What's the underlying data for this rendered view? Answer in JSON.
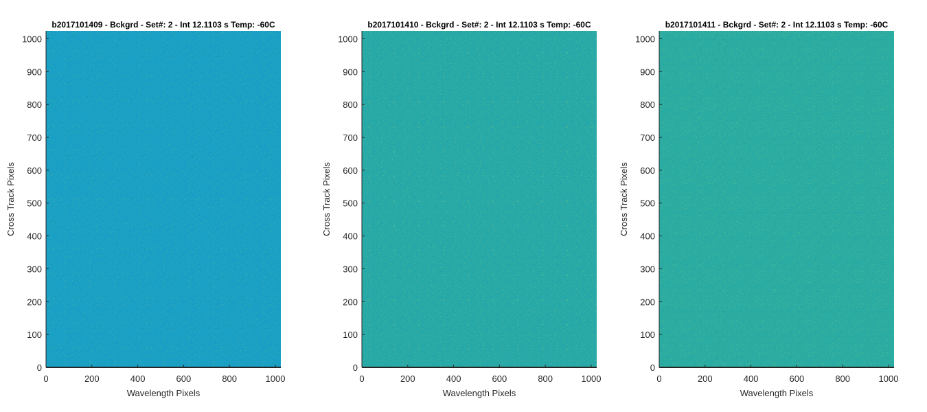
{
  "chart_data": [
    {
      "type": "heatmap",
      "title": "b2017101409 - Bckgrd - Set#: 2 - Int 12.1103 s Temp: -60C",
      "xlabel": "Wavelength Pixels",
      "ylabel": "Cross Track Pixels",
      "xlim": [
        0,
        1024
      ],
      "ylim": [
        0,
        1024
      ],
      "xticks": [
        0,
        200,
        400,
        600,
        800,
        1000
      ],
      "yticks": [
        0,
        100,
        200,
        300,
        400,
        500,
        600,
        700,
        800,
        900,
        1000
      ],
      "grid": false,
      "fill_color": "#1a9fc5",
      "noise_color": "#3fb3a8"
    },
    {
      "type": "heatmap",
      "title": "b2017101410 - Bckgrd - Set#: 2 - Int 12.1103 s Temp: -60C",
      "xlabel": "Wavelength Pixels",
      "ylabel": "Cross Track Pixels",
      "xlim": [
        0,
        1024
      ],
      "ylim": [
        0,
        1024
      ],
      "xticks": [
        0,
        200,
        400,
        600,
        800,
        1000
      ],
      "yticks": [
        0,
        100,
        200,
        300,
        400,
        500,
        600,
        700,
        800,
        900,
        1000
      ],
      "grid": false,
      "fill_color": "#27a9a8",
      "noise_color": "#56b98e"
    },
    {
      "type": "heatmap",
      "title": "b2017101411 - Bckgrd - Set#: 2 - Int 12.1103 s Temp: -60C",
      "xlabel": "Wavelength Pixels",
      "ylabel": "Cross Track Pixels",
      "xlim": [
        0,
        1024
      ],
      "ylim": [
        0,
        1024
      ],
      "xticks": [
        0,
        200,
        400,
        600,
        800,
        1000
      ],
      "yticks": [
        0,
        100,
        200,
        300,
        400,
        500,
        600,
        700,
        800,
        900,
        1000
      ],
      "grid": false,
      "fill_color": "#2aaca2",
      "noise_color": "#58bb8c"
    }
  ]
}
